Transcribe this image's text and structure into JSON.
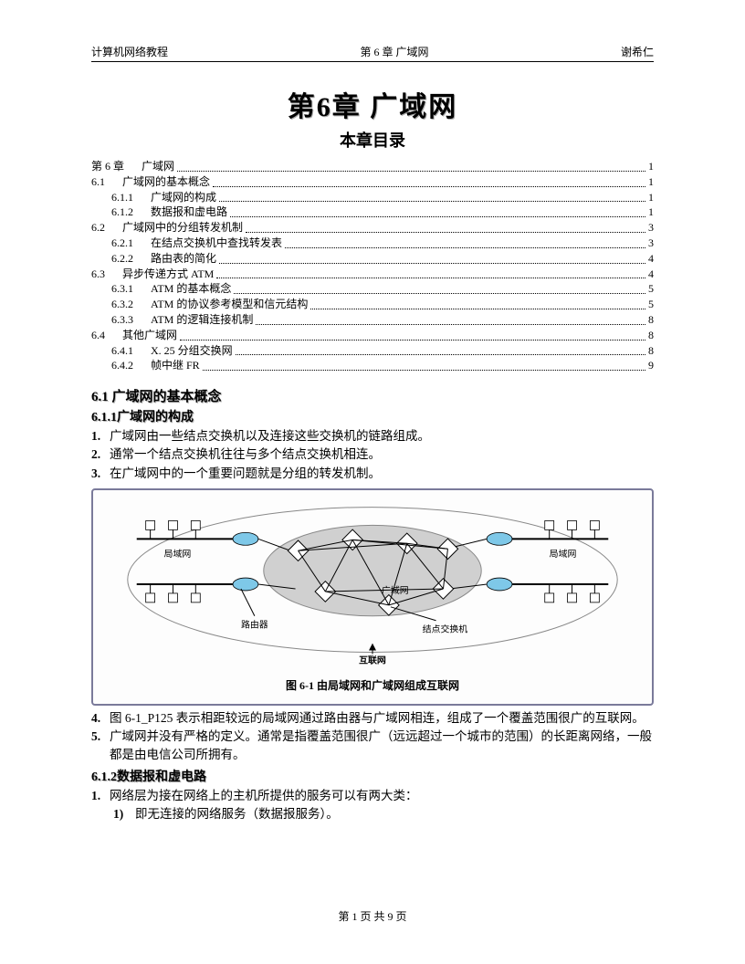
{
  "header": {
    "left": "计算机网络教程",
    "center": "第 6 章  广域网",
    "right": "谢希仁"
  },
  "chapter_title": "第6章    广域网",
  "chapter_subtitle": "本章目录",
  "toc": [
    {
      "num": "第 6 章",
      "label": "广域网",
      "page": "1",
      "indent": 0
    },
    {
      "num": "6.1",
      "label": "广域网的基本概念",
      "page": "1",
      "indent": 0
    },
    {
      "num": "6.1.1",
      "label": "广域网的构成",
      "page": "1",
      "indent": 1
    },
    {
      "num": "6.1.2",
      "label": "数据报和虚电路",
      "page": "1",
      "indent": 1
    },
    {
      "num": "6.2",
      "label": "广域网中的分组转发机制",
      "page": "3",
      "indent": 0
    },
    {
      "num": "6.2.1",
      "label": "在结点交换机中查找转发表",
      "page": "3",
      "indent": 1
    },
    {
      "num": "6.2.2",
      "label": "路由表的简化",
      "page": "4",
      "indent": 1
    },
    {
      "num": "6.3",
      "label": "异步传递方式 ATM",
      "page": "4",
      "indent": 0
    },
    {
      "num": "6.3.1",
      "label": "ATM 的基本概念",
      "page": "5",
      "indent": 1
    },
    {
      "num": "6.3.2",
      "label": "ATM 的协议参考模型和信元结构",
      "page": "5",
      "indent": 1
    },
    {
      "num": "6.3.3",
      "label": "ATM 的逻辑连接机制",
      "page": "8",
      "indent": 1
    },
    {
      "num": "6.4",
      "label": "其他广域网",
      "page": "8",
      "indent": 0
    },
    {
      "num": "6.4.1",
      "label": "X. 25 分组交换网",
      "page": "8",
      "indent": 1
    },
    {
      "num": "6.4.2",
      "label": "帧中继 FR",
      "page": "9",
      "indent": 1
    }
  ],
  "section_6_1": {
    "heading": "6.1 广域网的基本概念",
    "sub_6_1_1": {
      "heading": "6.1.1广域网的构成",
      "items_before": [
        {
          "num": "1.",
          "text": "广域网由一些结点交换机以及连接这些交换机的链路组成。"
        },
        {
          "num": "2.",
          "text": "通常一个结点交换机往往与多个结点交换机相连。"
        },
        {
          "num": "3.",
          "text": "在广域网中的一个重要问题就是分组的转发机制。"
        }
      ],
      "figure": {
        "caption": "图 6-1    由局域网和广域网组成互联网",
        "labels": {
          "lan_left": "局域网",
          "lan_right": "局域网",
          "wan": "广域网",
          "router": "路由器",
          "switch": "结点交换机",
          "internet": "互联网"
        },
        "colors": {
          "border": "#7a7a9a",
          "cloud_fill": "#d0d0d0",
          "cloud_stroke": "#888888",
          "router_fill": "#7ec8e8",
          "node_fill": "#ffffff",
          "link": "#000000"
        }
      },
      "items_after": [
        {
          "num": "4.",
          "text": "图 6-1_P125 表示相距较远的局域网通过路由器与广域网相连，组成了一个覆盖范围很广的互联网。"
        },
        {
          "num": "5.",
          "text": "广域网并没有严格的定义。通常是指覆盖范围很广（远远超过一个城市的范围）的长距离网络，一般都是由电信公司所拥有。"
        }
      ]
    },
    "sub_6_1_2": {
      "heading": "6.1.2数据报和虚电路",
      "items": [
        {
          "num": "1.",
          "text": "网络层为接在网络上的主机所提供的服务可以有两大类："
        }
      ],
      "subitems": [
        {
          "num": "1)",
          "text": "即无连接的网络服务（数据报服务）。"
        }
      ]
    }
  },
  "footer": "第  1  页  共  9  页"
}
